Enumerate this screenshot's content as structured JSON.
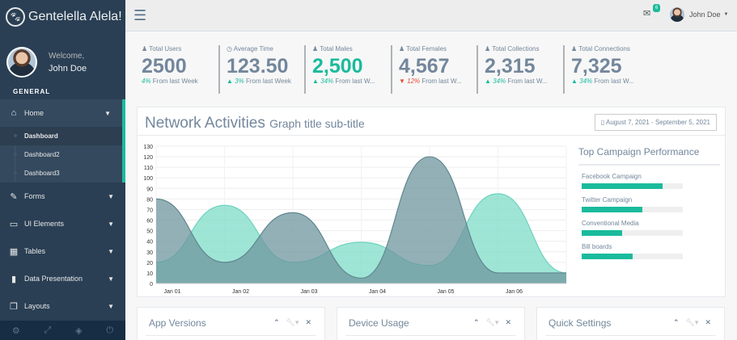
{
  "brand": {
    "name": "Gentelella Alela!",
    "logo_icon": "paw-icon"
  },
  "profile": {
    "welcome": "Welcome,",
    "name": "John Doe"
  },
  "sidebar": {
    "section": "GENERAL",
    "items": [
      {
        "label": "Home",
        "icon": "⌂"
      },
      {
        "label": "Forms",
        "icon": "✎"
      },
      {
        "label": "UI Elements",
        "icon": "▭"
      },
      {
        "label": "Tables",
        "icon": "▦"
      },
      {
        "label": "Data Presentation",
        "icon": "▮"
      },
      {
        "label": "Layouts",
        "icon": "❐"
      }
    ],
    "submenu": [
      "Dashboard",
      "Dashboard2",
      "Dashboard3"
    ]
  },
  "topnav": {
    "badge": "6",
    "user": "John Doe"
  },
  "tiles": [
    {
      "title": "Total Users",
      "icon": "♟",
      "count": "2500",
      "pct": "4%",
      "sub": "From last Week",
      "arrow": ""
    },
    {
      "title": "Average Time",
      "icon": "◷",
      "count": "123.50",
      "pct": "3%",
      "sub": "From last Week",
      "arrow": "▲"
    },
    {
      "title": "Total Males",
      "icon": "♟",
      "count": "2,500",
      "pct": "34%",
      "sub": "From last W...",
      "arrow": "▲"
    },
    {
      "title": "Total Females",
      "icon": "♟",
      "count": "4,567",
      "pct": "12%",
      "sub": "From last W...",
      "arrow": "▼"
    },
    {
      "title": "Total Collections",
      "icon": "♟",
      "count": "2,315",
      "pct": "34%",
      "sub": "From last W...",
      "arrow": "▲"
    },
    {
      "title": "Total Connections",
      "icon": "♟",
      "count": "7,325",
      "pct": "34%",
      "sub": "From last W...",
      "arrow": "▲"
    }
  ],
  "chart_panel": {
    "title": "Network Activities",
    "subtitle": "Graph title sub-title",
    "daterange": "▯ August 7, 2021 - September 5, 2021"
  },
  "chart_data": {
    "type": "area",
    "x": [
      "Jan 01",
      "Jan 02",
      "Jan 03",
      "Jan 04",
      "Jan 05",
      "Jan 06",
      ""
    ],
    "ylim": [
      0,
      130
    ],
    "yticks": [
      0,
      10,
      20,
      30,
      40,
      50,
      60,
      70,
      80,
      90,
      100,
      110,
      120,
      130
    ],
    "series": [
      {
        "values": [
          20,
          74,
          20,
          39,
          17,
          85,
          10
        ],
        "color": "#7fdcc8"
      },
      {
        "values": [
          80,
          20,
          67,
          5,
          120,
          10,
          10
        ],
        "color": "#6f969f"
      }
    ]
  },
  "campaign": {
    "title": "Top Campaign Performance",
    "items": [
      {
        "label": "Facebook Campaign",
        "value": 80
      },
      {
        "label": "Twitter Campaign",
        "value": 60
      },
      {
        "label": "Conventional Media",
        "value": 40
      },
      {
        "label": "Bill boards",
        "value": 50
      }
    ]
  },
  "bottom_panels": [
    {
      "title": "App Versions"
    },
    {
      "title": "Device Usage"
    },
    {
      "title": "Quick Settings"
    }
  ]
}
